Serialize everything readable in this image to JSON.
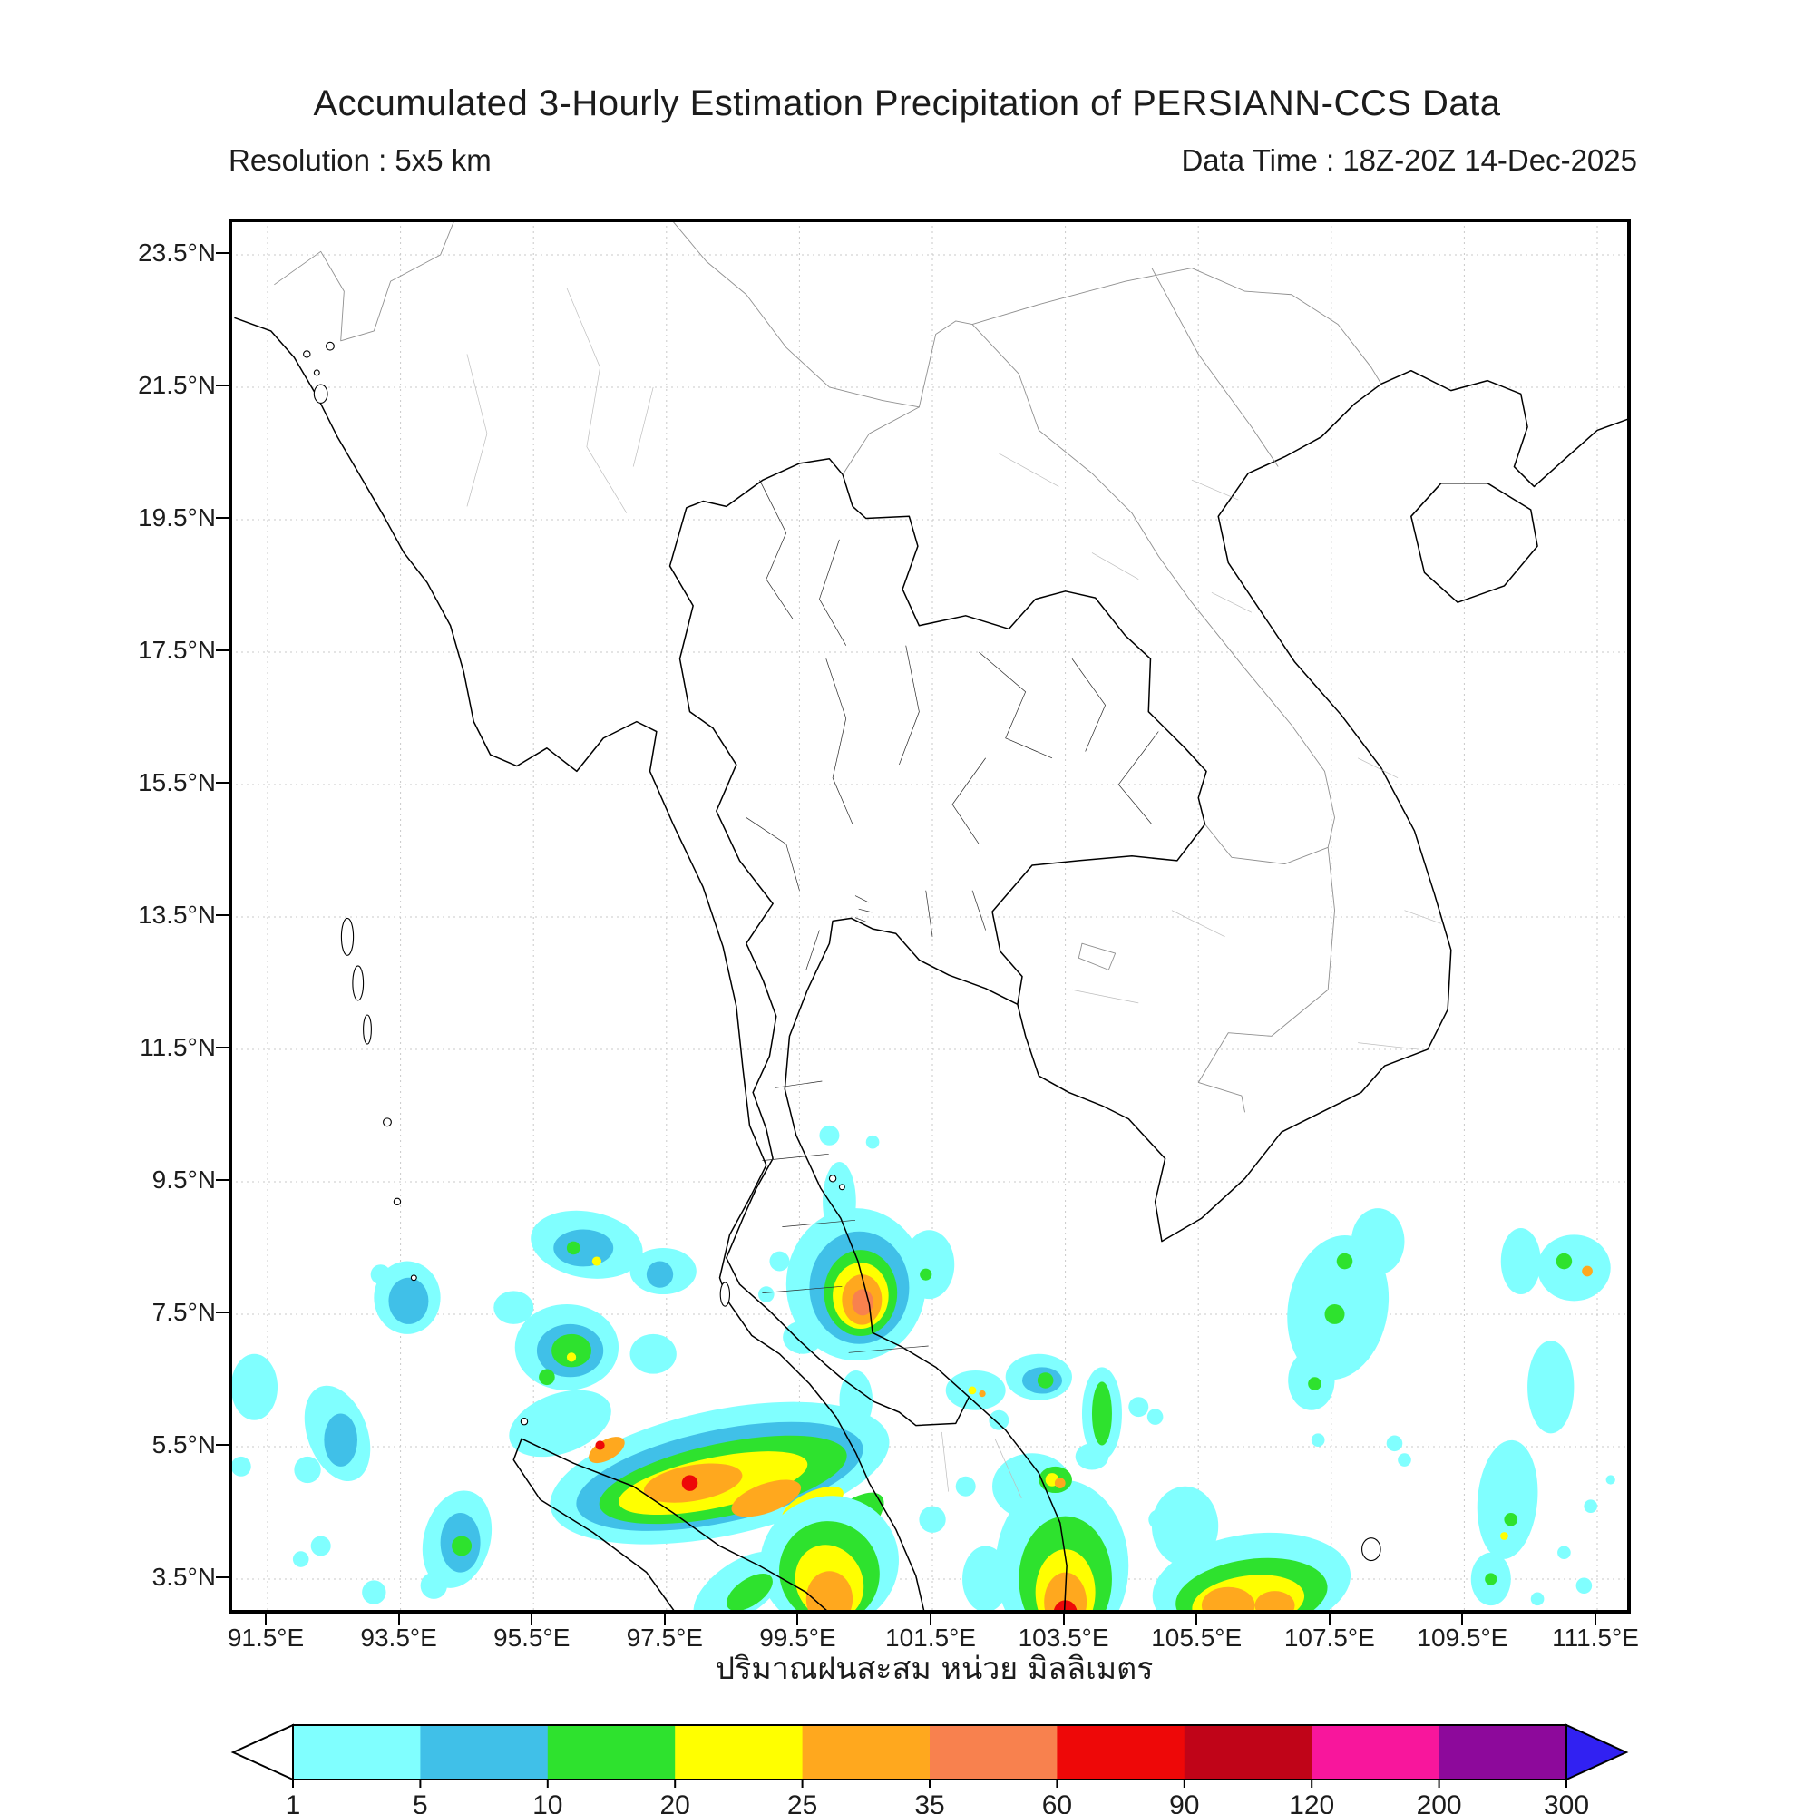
{
  "title": "Accumulated 3-Hourly Estimation Precipitation of PERSIANN-CCS Data",
  "subtitle_left": "Resolution : 5x5 km",
  "subtitle_right": "Data Time : 18Z-20Z 14-Dec-2025",
  "map": {
    "lat_tick_labels": [
      "23.5°N",
      "21.5°N",
      "19.5°N",
      "17.5°N",
      "15.5°N",
      "13.5°N",
      "11.5°N",
      "9.5°N",
      "7.5°N",
      "5.5°N",
      "3.5°N"
    ],
    "lon_tick_labels": [
      "91.5°E",
      "93.5°E",
      "95.5°E",
      "97.5°E",
      "99.5°E",
      "101.5°E",
      "103.5°E",
      "105.5°E",
      "107.5°E",
      "109.5°E",
      "111.5°E"
    ]
  },
  "colorbar": {
    "caption": "ปริมาณฝนสะสม หน่วย มิลลิเมตร",
    "tick_labels": [
      "1",
      "5",
      "10",
      "20",
      "25",
      "35",
      "60",
      "90",
      "120",
      "200",
      "300"
    ],
    "levels_mm": [
      1,
      5,
      10,
      20,
      25,
      35,
      60,
      90,
      120,
      200,
      300
    ],
    "segment_colors": [
      "#80ffff",
      "#40c0e8",
      "#2ee22e",
      "#ffff00",
      "#ffa81e",
      "#f8814e",
      "#ee0808",
      "#c00418",
      "#f8169c",
      "#8d099b"
    ],
    "under_color": "#ffffff",
    "over_color": "#3121f2"
  }
}
